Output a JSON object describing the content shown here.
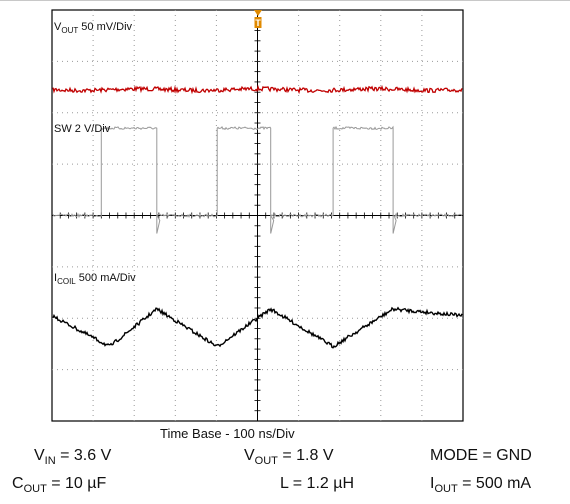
{
  "chart_data": {
    "type": "line",
    "title": "",
    "xlabel": "Time Base - 100 ns/Div",
    "ylabel": "",
    "grid": true,
    "divisions": {
      "x": 10,
      "y": 8
    },
    "x_unit": "ns",
    "x_range": [
      0,
      1000
    ],
    "trigger_marker": "T",
    "series": [
      {
        "name": "VOUT 50 mV/Div",
        "label_main": "V",
        "label_sub": "OUT",
        "label_scale": "50 mV/Div",
        "color": "#c00000",
        "kind": "flat",
        "baseline_div": 1.55
      },
      {
        "name": "SW 2 V/Div",
        "label_main": "SW 2 V/Div",
        "label_sub": "",
        "label_scale": "",
        "color": "#999999",
        "kind": "square",
        "low_div": 4.0,
        "high_div": 2.3,
        "edges_ns": [
          {
            "t": 120,
            "dir": "up"
          },
          {
            "t": 255,
            "dir": "down"
          },
          {
            "t": 402,
            "dir": "up"
          },
          {
            "t": 532,
            "dir": "down"
          },
          {
            "t": 684,
            "dir": "up"
          },
          {
            "t": 830,
            "dir": "down"
          }
        ]
      },
      {
        "name": "ICOIL 500 mA/Div",
        "label_main": "I",
        "label_sub": "COIL",
        "label_scale": "500 mA/Div",
        "color": "#000000",
        "kind": "triangle",
        "x_ns": [
          0,
          140,
          255,
          402,
          532,
          684,
          830,
          1000
        ],
        "y_div": [
          5.95,
          6.55,
          5.82,
          6.55,
          5.82,
          6.55,
          5.82,
          5.95
        ]
      }
    ]
  },
  "conditions": {
    "vin": {
      "main": "V",
      "sub": "IN",
      "rest": " = 3.6 V"
    },
    "vout": {
      "main": "V",
      "sub": "OUT",
      "rest": " = 1.8 V"
    },
    "mode": {
      "main": "MODE = GND",
      "sub": "",
      "rest": ""
    },
    "cout": {
      "main": "C",
      "sub": "OUT",
      "rest": " = 10 µF"
    },
    "l": {
      "main": "L = 1.2 µH",
      "sub": "",
      "rest": ""
    },
    "iout": {
      "main": "I",
      "sub": "OUT",
      "rest": " = 500 mA"
    }
  }
}
